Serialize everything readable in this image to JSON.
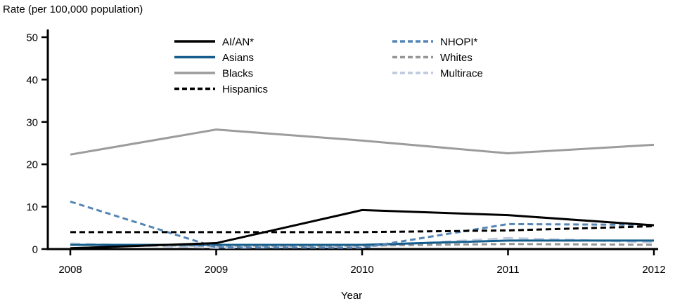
{
  "chart_data": {
    "type": "line",
    "title": "Rate (per 100,000 population)",
    "xlabel": "Year",
    "x": [
      2008,
      2009,
      2010,
      2011,
      2012
    ],
    "ylim": [
      0,
      50
    ],
    "yticks": [
      0,
      10,
      20,
      30,
      40,
      50
    ],
    "grid": false,
    "legend_position": "top-inside-two-columns",
    "series": [
      {
        "name": "AI/AN*",
        "color": "#000000",
        "dash": "solid",
        "values": [
          0.2,
          1.4,
          9.2,
          8.0,
          5.6
        ]
      },
      {
        "name": "Asians",
        "color": "#155d8c",
        "dash": "solid",
        "values": [
          1.0,
          1.0,
          1.0,
          2.0,
          2.0
        ]
      },
      {
        "name": "Blacks",
        "color": "#9c9c9c",
        "dash": "solid",
        "values": [
          22.3,
          28.2,
          25.6,
          22.6,
          24.6
        ]
      },
      {
        "name": "Hispanics",
        "color": "#000000",
        "dash": "dash",
        "values": [
          4.0,
          4.0,
          4.0,
          4.4,
          5.4
        ]
      },
      {
        "name": "NHOPI*",
        "color": "#5585b5",
        "dash": "dash",
        "values": [
          11.2,
          0.4,
          0.3,
          5.9,
          5.7
        ]
      },
      {
        "name": "Whites",
        "color": "#969696",
        "dash": "dash",
        "values": [
          1.0,
          0.8,
          0.8,
          1.2,
          1.0
        ]
      },
      {
        "name": "Multirace",
        "color": "#bfcadf",
        "dash": "longdash",
        "values": [
          1.3,
          0.3,
          0.6,
          2.6,
          1.6
        ]
      }
    ],
    "legend_columns": [
      [
        "AI/AN*",
        "Asians",
        "Blacks",
        "Hispanics"
      ],
      [
        "NHOPI*",
        "Whites",
        "Multirace"
      ]
    ]
  }
}
